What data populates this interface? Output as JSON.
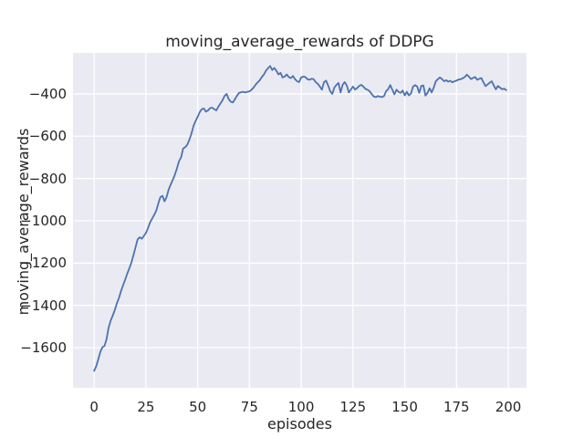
{
  "figure": {
    "title": "moving_average_rewards of DDPG",
    "background_color": "#ffffff",
    "axes_background_color": "#eaeaf2",
    "grid_color": "#ffffff",
    "text_color": "#262626"
  },
  "chart_data": {
    "type": "line",
    "title": "moving_average_rewards of DDPG",
    "xlabel": "episodes",
    "ylabel": "moving_average_rewards",
    "x_ticks": [
      0,
      25,
      50,
      75,
      100,
      125,
      150,
      175,
      200
    ],
    "y_ticks": [
      -400,
      -600,
      -800,
      -1000,
      -1200,
      -1400,
      -1600
    ],
    "xlim": [
      -10.2,
      208.8
    ],
    "ylim": [
      -1790,
      -206
    ],
    "grid": true,
    "legend": null,
    "series": [
      {
        "name": "moving_average_rewards",
        "color": "#4c72b0",
        "x_start": 0,
        "x_step": 1,
        "y": [
          -1710,
          -1688,
          -1655,
          -1620,
          -1598,
          -1592,
          -1560,
          -1505,
          -1472,
          -1448,
          -1422,
          -1390,
          -1365,
          -1332,
          -1305,
          -1278,
          -1250,
          -1225,
          -1198,
          -1162,
          -1125,
          -1088,
          -1078,
          -1085,
          -1072,
          -1058,
          -1035,
          -1008,
          -990,
          -972,
          -952,
          -918,
          -888,
          -882,
          -908,
          -888,
          -852,
          -828,
          -806,
          -782,
          -752,
          -718,
          -700,
          -658,
          -652,
          -640,
          -616,
          -588,
          -551,
          -528,
          -508,
          -486,
          -472,
          -469,
          -484,
          -478,
          -467,
          -465,
          -472,
          -478,
          -460,
          -445,
          -430,
          -409,
          -400,
          -425,
          -437,
          -440,
          -425,
          -408,
          -395,
          -392,
          -390,
          -393,
          -390,
          -388,
          -380,
          -370,
          -356,
          -345,
          -335,
          -320,
          -308,
          -290,
          -278,
          -268,
          -287,
          -277,
          -290,
          -308,
          -300,
          -322,
          -318,
          -308,
          -320,
          -325,
          -315,
          -330,
          -340,
          -344,
          -322,
          -318,
          -320,
          -330,
          -333,
          -328,
          -330,
          -344,
          -352,
          -365,
          -380,
          -344,
          -337,
          -360,
          -387,
          -400,
          -370,
          -357,
          -348,
          -393,
          -357,
          -344,
          -360,
          -393,
          -379,
          -365,
          -379,
          -372,
          -362,
          -357,
          -365,
          -376,
          -380,
          -387,
          -400,
          -412,
          -415,
          -410,
          -413,
          -415,
          -410,
          -387,
          -377,
          -358,
          -380,
          -402,
          -380,
          -390,
          -395,
          -384,
          -407,
          -390,
          -407,
          -398,
          -365,
          -358,
          -365,
          -395,
          -362,
          -360,
          -408,
          -395,
          -373,
          -393,
          -370,
          -340,
          -330,
          -322,
          -330,
          -340,
          -335,
          -342,
          -338,
          -345,
          -340,
          -337,
          -332,
          -330,
          -326,
          -320,
          -309,
          -318,
          -330,
          -324,
          -320,
          -333,
          -328,
          -325,
          -345,
          -363,
          -355,
          -347,
          -340,
          -360,
          -378,
          -362,
          -370,
          -378,
          -375,
          -382
        ]
      }
    ]
  }
}
